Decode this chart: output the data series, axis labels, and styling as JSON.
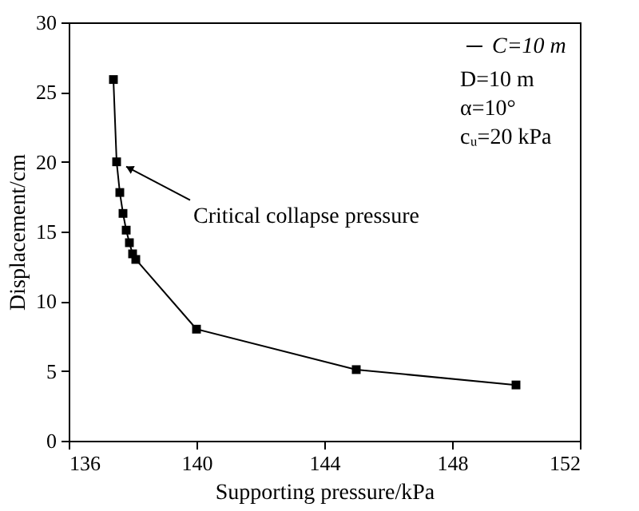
{
  "chart_data": {
    "type": "line",
    "xlabel": "Supporting pressure/kPa",
    "ylabel": "Displacement/cm",
    "x": [
      137.4,
      137.5,
      137.6,
      137.7,
      137.8,
      137.9,
      138.0,
      138.1,
      140,
      145,
      150
    ],
    "series": [
      {
        "name": "C=10 m",
        "color": "#000000",
        "values": [
          25.9,
          20.0,
          17.8,
          16.3,
          15.1,
          14.2,
          13.4,
          13.0,
          8.0,
          5.1,
          4.0
        ]
      }
    ],
    "marker": "square",
    "line_style": "solid",
    "legend": "top right",
    "grid": false,
    "xlim": [
      136,
      152
    ],
    "xticks": [
      136,
      140,
      144,
      148,
      152
    ],
    "ylim": [
      0,
      30
    ],
    "yticks": [
      0,
      5,
      10,
      15,
      20,
      25,
      30
    ],
    "annotations": [
      "D=10 m",
      "α=10°",
      "cᵤ=20 kPa",
      {
        "text": "Critical collapse pressure",
        "x": 137.5,
        "y": 20.0
      }
    ]
  }
}
